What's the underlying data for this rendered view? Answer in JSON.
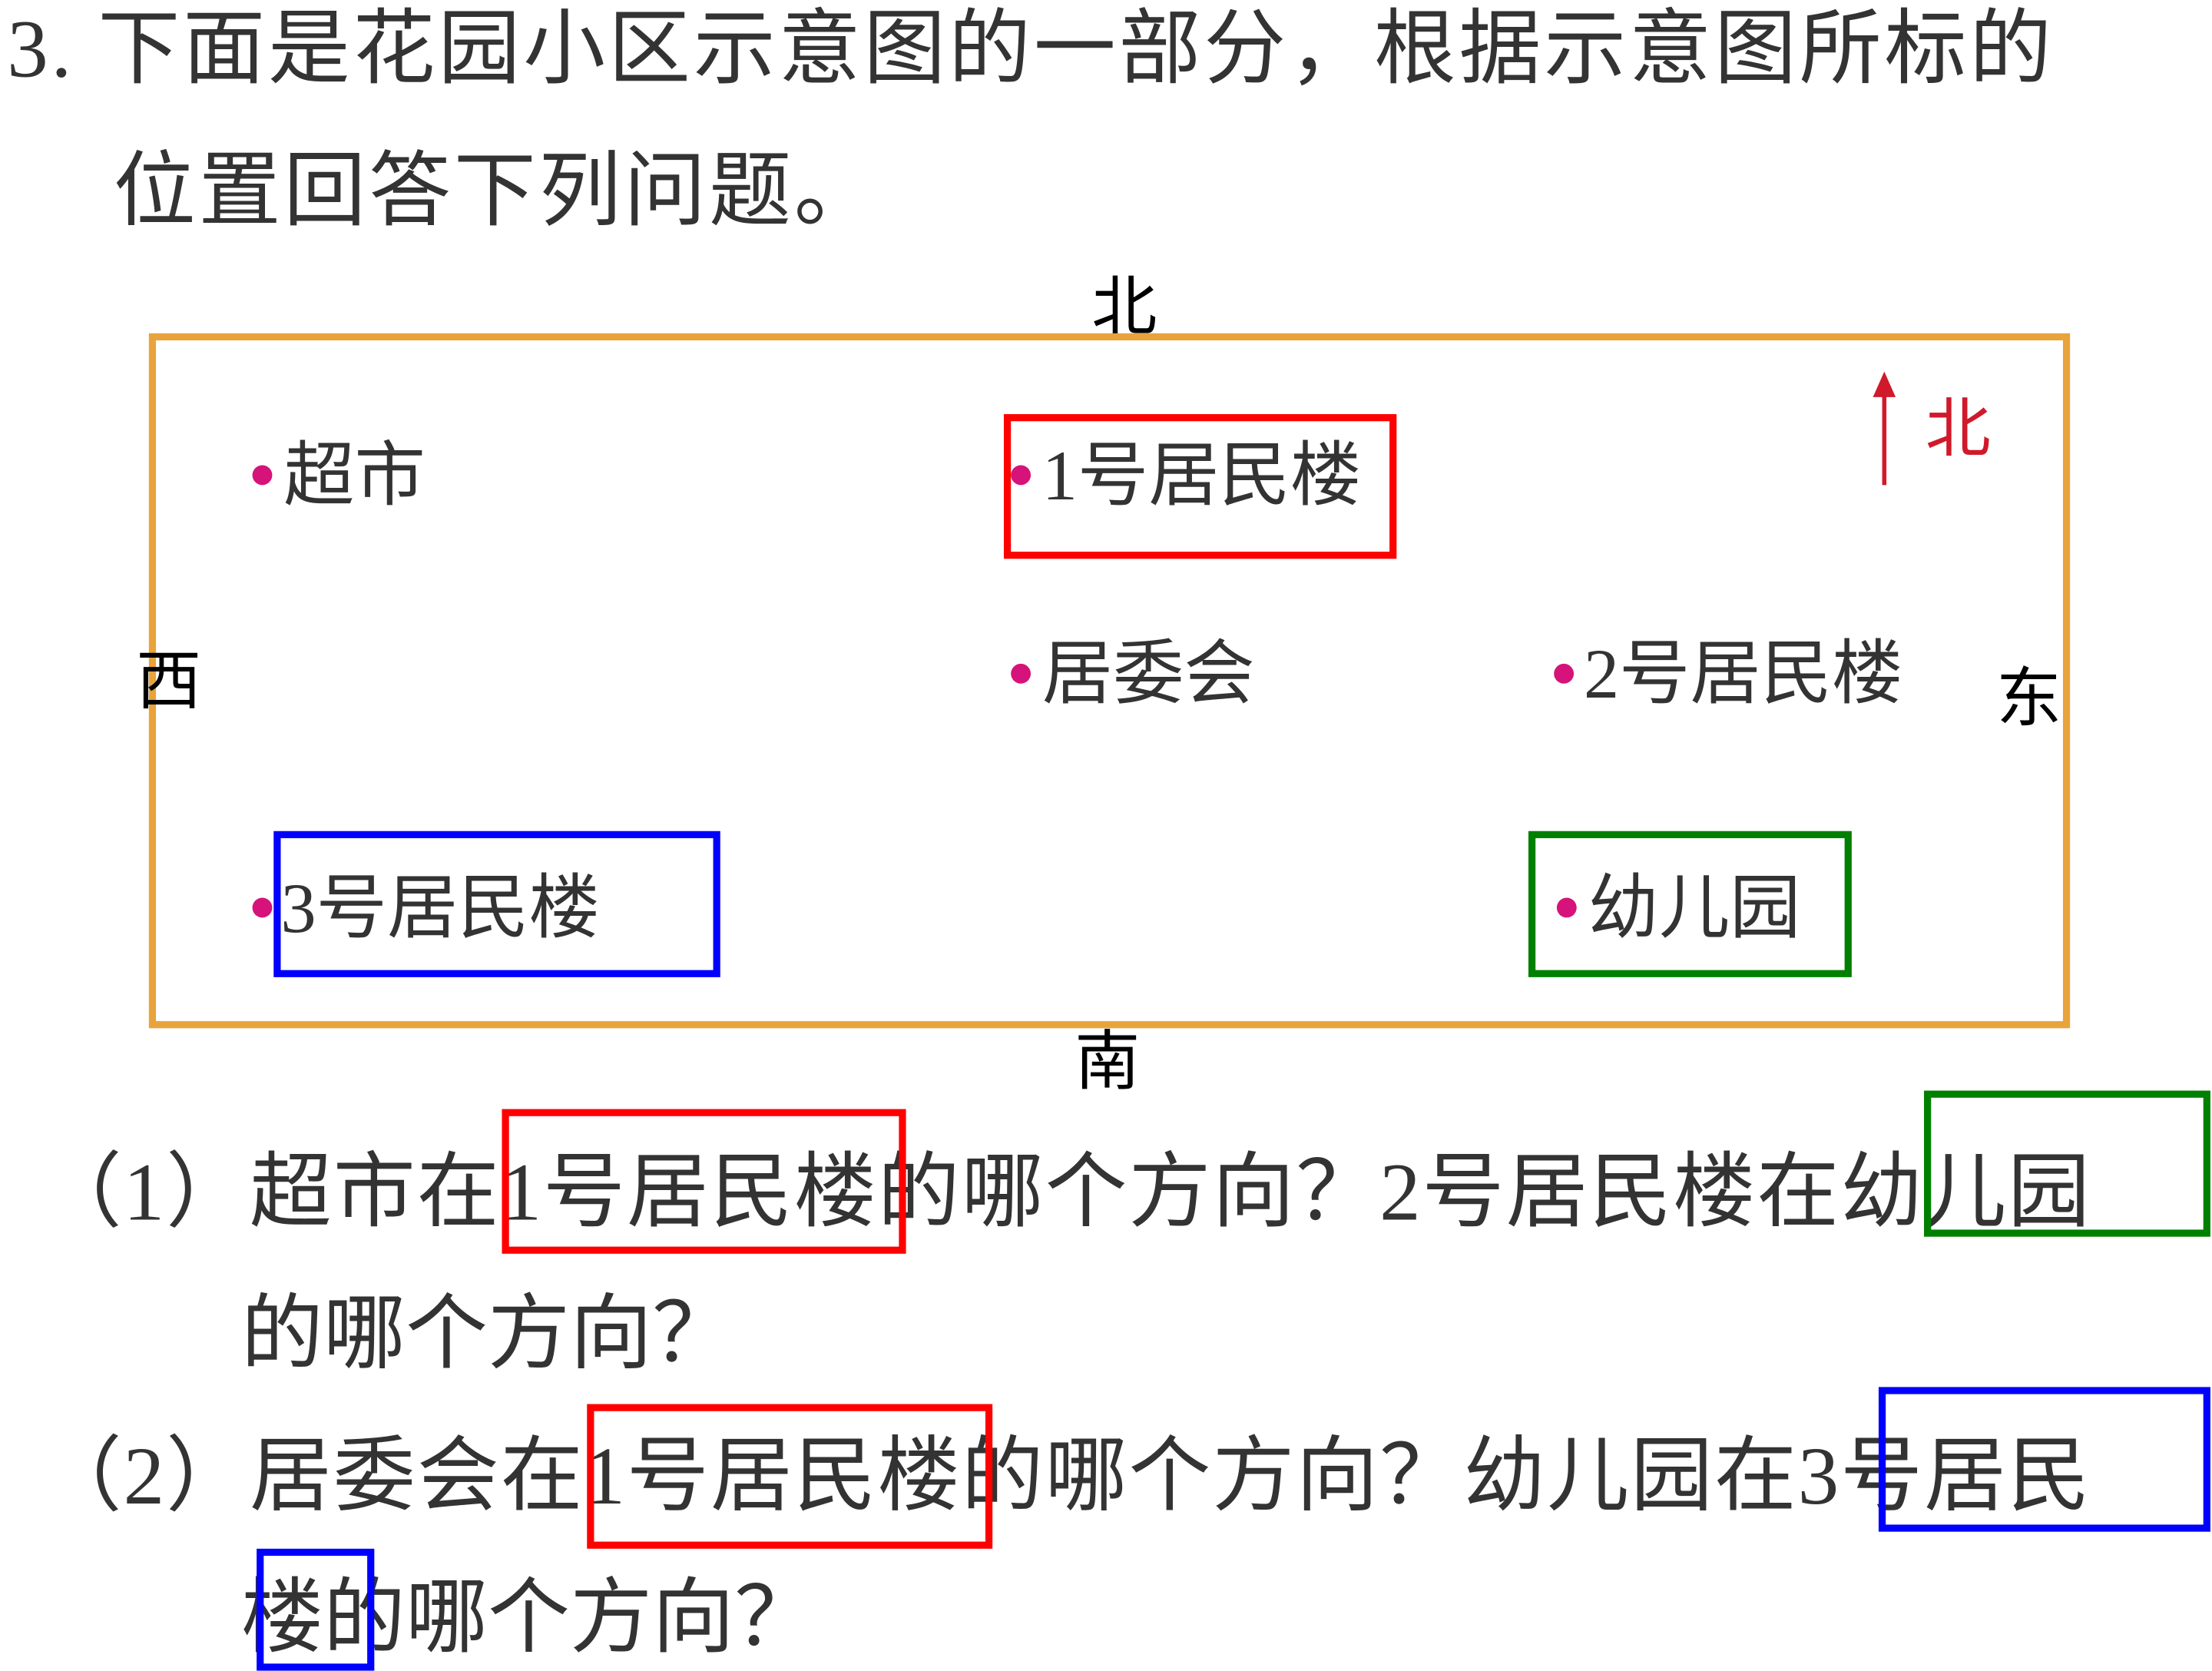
{
  "problem": {
    "line1": "3. 下面是花园小区示意图的一部分，根据示意图所标的",
    "line2": "位置回答下列问题。"
  },
  "map": {
    "border_color": "#e8a33a",
    "directions": {
      "north": "北",
      "south": "南",
      "west": "西",
      "east": "东"
    },
    "compass": {
      "label": "北",
      "color": "#d0192b",
      "icon": "arrow-up-icon"
    },
    "dot_color": "#d6137a",
    "places": [
      {
        "label": "超市"
      },
      {
        "label": "1号居民楼"
      },
      {
        "label": "居委会"
      },
      {
        "label": "2号居民楼"
      },
      {
        "label": "3号居民楼"
      },
      {
        "label": "幼儿园"
      }
    ]
  },
  "questions": [
    {
      "line1": "（1）超市在1号居民楼的哪个方向？2号居民楼在幼儿园",
      "line2": "的哪个方向？"
    },
    {
      "line1": "（2）居委会在1号居民楼的哪个方向？幼儿园在3号居民",
      "line2": "楼的哪个方向？"
    }
  ],
  "highlight_colors": {
    "red": "#ff0000",
    "blue": "#0000ff",
    "green": "#008000"
  }
}
